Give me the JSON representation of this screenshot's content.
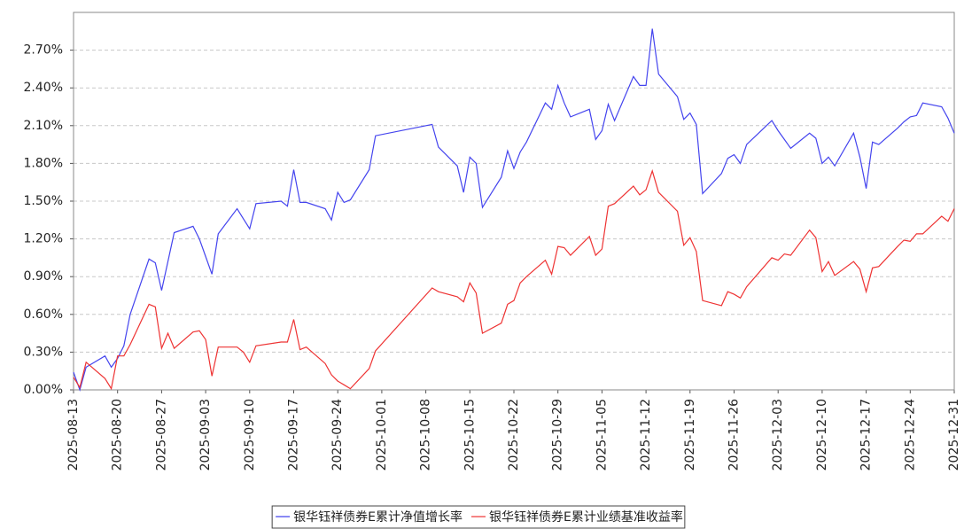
{
  "chart_data": {
    "type": "line",
    "x": [
      "2025-08-13",
      "2025-08-14",
      "2025-08-15",
      "2025-08-18",
      "2025-08-19",
      "2025-08-20",
      "2025-08-21",
      "2025-08-22",
      "2025-08-25",
      "2025-08-26",
      "2025-08-27",
      "2025-08-28",
      "2025-08-29",
      "2025-09-01",
      "2025-09-02",
      "2025-09-03",
      "2025-09-04",
      "2025-09-05",
      "2025-09-08",
      "2025-09-09",
      "2025-09-10",
      "2025-09-11",
      "2025-09-15",
      "2025-09-16",
      "2025-09-17",
      "2025-09-18",
      "2025-09-19",
      "2025-09-22",
      "2025-09-23",
      "2025-09-24",
      "2025-09-25",
      "2025-09-26",
      "2025-09-29",
      "2025-09-30",
      "2025-10-09",
      "2025-10-10",
      "2025-10-13",
      "2025-10-14",
      "2025-10-15",
      "2025-10-16",
      "2025-10-17",
      "2025-10-20",
      "2025-10-21",
      "2025-10-22",
      "2025-10-23",
      "2025-10-24",
      "2025-10-27",
      "2025-10-28",
      "2025-10-29",
      "2025-10-30",
      "2025-10-31",
      "2025-11-03",
      "2025-11-04",
      "2025-11-05",
      "2025-11-06",
      "2025-11-07",
      "2025-11-10",
      "2025-11-11",
      "2025-11-12",
      "2025-11-13",
      "2025-11-14",
      "2025-11-17",
      "2025-11-18",
      "2025-11-19",
      "2025-11-20",
      "2025-11-21",
      "2025-11-24",
      "2025-11-25",
      "2025-11-26",
      "2025-11-27",
      "2025-11-28",
      "2025-12-02",
      "2025-12-03",
      "2025-12-04",
      "2025-12-05",
      "2025-12-08",
      "2025-12-09",
      "2025-12-10",
      "2025-12-11",
      "2025-12-12",
      "2025-12-15",
      "2025-12-16",
      "2025-12-17",
      "2025-12-18",
      "2025-12-19",
      "2025-12-22",
      "2025-12-23",
      "2025-12-24",
      "2025-12-25",
      "2025-12-26",
      "2025-12-29",
      "2025-12-30",
      "2025-12-31"
    ],
    "series": [
      {
        "name": "银华钰祥债券E累计净值增长率",
        "color": "#4444ee",
        "values": [
          0.14,
          0.0,
          0.18,
          0.27,
          0.18,
          0.25,
          0.35,
          0.6,
          1.04,
          1.01,
          0.79,
          1.02,
          1.25,
          1.3,
          1.2,
          1.06,
          0.92,
          1.24,
          1.44,
          1.36,
          1.28,
          1.48,
          1.5,
          1.46,
          1.75,
          1.49,
          1.49,
          1.44,
          1.35,
          1.57,
          1.49,
          1.51,
          1.75,
          2.02,
          2.11,
          1.93,
          1.78,
          1.57,
          1.85,
          1.8,
          1.45,
          1.69,
          1.9,
          1.76,
          1.89,
          1.97,
          2.28,
          2.23,
          2.42,
          2.28,
          2.17,
          2.23,
          1.99,
          2.06,
          2.27,
          2.14,
          2.49,
          2.42,
          2.42,
          2.87,
          2.51,
          2.33,
          2.15,
          2.2,
          2.11,
          1.56,
          1.72,
          1.84,
          1.87,
          1.8,
          1.95,
          2.14,
          2.06,
          1.99,
          1.92,
          2.04,
          2.0,
          1.8,
          1.85,
          1.78,
          2.04,
          1.85,
          1.6,
          1.97,
          1.95,
          2.08,
          2.13,
          2.17,
          2.18,
          2.28,
          2.25,
          2.16,
          2.04
        ]
      },
      {
        "name": "银华钰祥债券E累计业绩基准收益率",
        "color": "#ee3333",
        "values": [
          0.1,
          0.02,
          0.22,
          0.09,
          0.01,
          0.27,
          0.27,
          0.36,
          0.68,
          0.66,
          0.33,
          0.45,
          0.33,
          0.46,
          0.47,
          0.4,
          0.11,
          0.34,
          0.34,
          0.3,
          0.22,
          0.35,
          0.38,
          0.38,
          0.56,
          0.32,
          0.34,
          0.21,
          0.12,
          0.07,
          0.04,
          0.01,
          0.17,
          0.31,
          0.81,
          0.78,
          0.74,
          0.7,
          0.85,
          0.77,
          0.45,
          0.53,
          0.68,
          0.71,
          0.85,
          0.9,
          1.03,
          0.92,
          1.14,
          1.13,
          1.07,
          1.22,
          1.07,
          1.12,
          1.46,
          1.48,
          1.62,
          1.55,
          1.59,
          1.74,
          1.57,
          1.42,
          1.15,
          1.21,
          1.1,
          0.71,
          0.67,
          0.78,
          0.76,
          0.73,
          0.82,
          1.05,
          1.03,
          1.08,
          1.07,
          1.27,
          1.21,
          0.94,
          1.02,
          0.91,
          1.02,
          0.96,
          0.78,
          0.97,
          0.98,
          1.14,
          1.19,
          1.18,
          1.24,
          1.24,
          1.38,
          1.34,
          1.44
        ]
      }
    ],
    "xlim": [
      "2025-08-13",
      "2025-12-31"
    ],
    "xticks": [
      "2025-08-13",
      "2025-08-20",
      "2025-08-27",
      "2025-09-03",
      "2025-09-10",
      "2025-09-17",
      "2025-09-24",
      "2025-10-01",
      "2025-10-08",
      "2025-10-15",
      "2025-10-22",
      "2025-10-29",
      "2025-11-05",
      "2025-11-12",
      "2025-11-19",
      "2025-11-26",
      "2025-12-03",
      "2025-12-10",
      "2025-12-17",
      "2025-12-24",
      "2025-12-31"
    ],
    "ylim": [
      0,
      3.0
    ],
    "yticks": [
      {
        "value": 0,
        "label": "0.00%"
      },
      {
        "value": 0.3,
        "label": "0.30%"
      },
      {
        "value": 0.6,
        "label": "0.60%"
      },
      {
        "value": 0.9,
        "label": "0.90%"
      },
      {
        "value": 1.2,
        "label": "1.20%"
      },
      {
        "value": 1.5,
        "label": "1.50%"
      },
      {
        "value": 1.8,
        "label": "1.80%"
      },
      {
        "value": 2.1,
        "label": "2.10%"
      },
      {
        "value": 2.4,
        "label": "2.40%"
      },
      {
        "value": 2.7,
        "label": "2.70%"
      }
    ],
    "grid": true,
    "legend": "bottom"
  }
}
